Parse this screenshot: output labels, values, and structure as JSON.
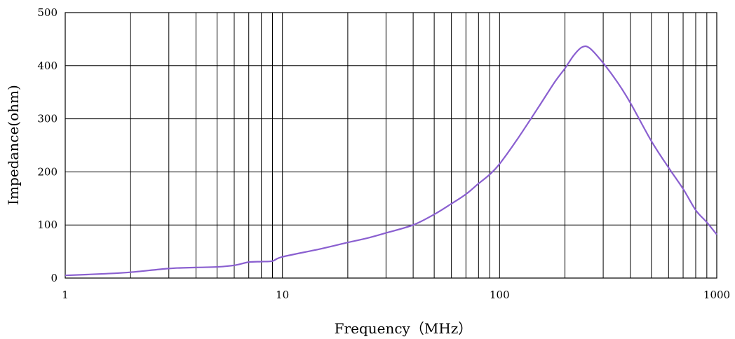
{
  "chart_data": {
    "type": "line",
    "title": "",
    "xlabel": "Frequency（MHz）",
    "ylabel": "Impedance(ohm)",
    "xscale": "log",
    "xlim": [
      1,
      1000
    ],
    "ylim": [
      0,
      500
    ],
    "x_ticks": [
      "1",
      "10",
      "100",
      "1000"
    ],
    "y_ticks": [
      "0",
      "100",
      "200",
      "300",
      "400",
      "500"
    ],
    "grid": true,
    "legend": "none",
    "series": [
      {
        "color": "#8a5fd0",
        "x": [
          1,
          1.5,
          2,
          3,
          4,
          5,
          6,
          7,
          8,
          9,
          10,
          15,
          20,
          25,
          30,
          40,
          50,
          60,
          70,
          80,
          90,
          100,
          120,
          150,
          180,
          200,
          220,
          240,
          260,
          300,
          350,
          400,
          500,
          600,
          700,
          800,
          900,
          1000
        ],
        "y": [
          5,
          8,
          11,
          18,
          20,
          21,
          24,
          30,
          31,
          32,
          40,
          55,
          67,
          76,
          85,
          100,
          120,
          140,
          158,
          178,
          195,
          215,
          260,
          320,
          370,
          395,
          420,
          435,
          433,
          405,
          368,
          330,
          258,
          208,
          168,
          128,
          105,
          82
        ]
      }
    ]
  }
}
